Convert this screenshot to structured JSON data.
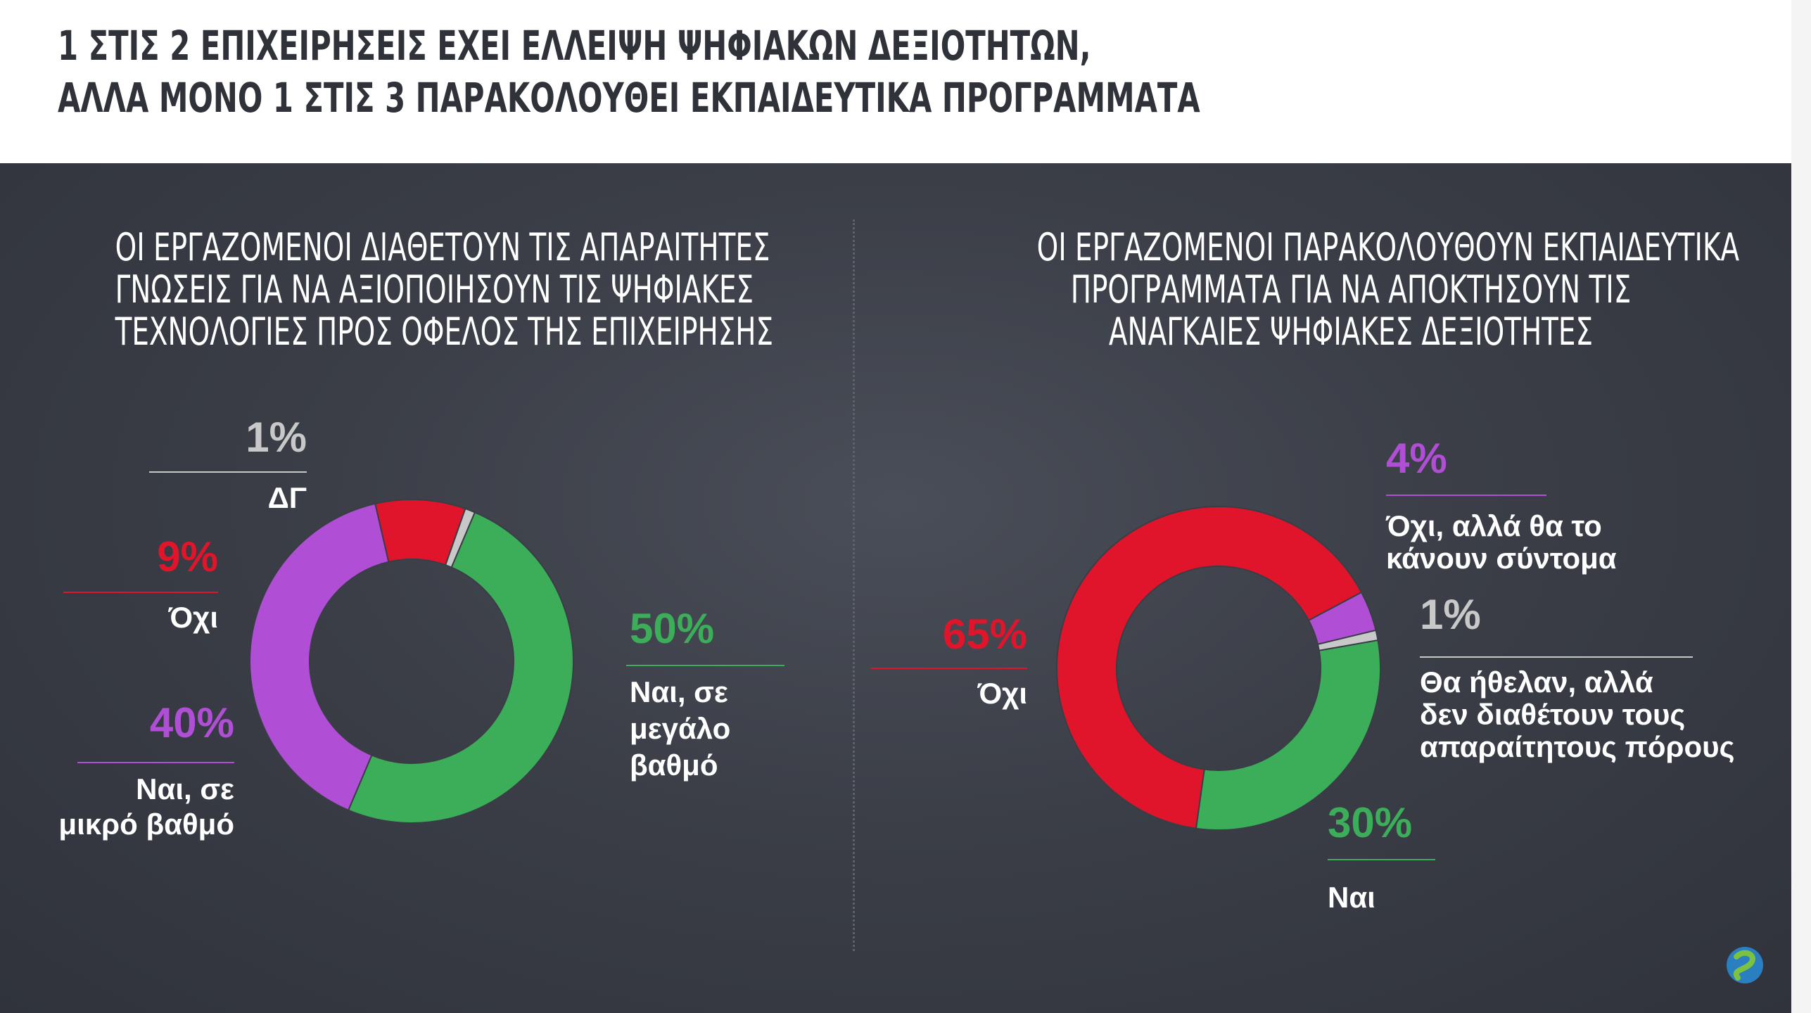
{
  "title": {
    "line1": "1 ΣΤΙΣ 2 ΕΠΙΧΕΙΡΗΣΕΙΣ ΕΧΕΙ ΕΛΛΕΙΨΗ ΨΗΦΙΑΚΩΝ ΔΕΞΙΟΤΗΤΩΝ,",
    "line2": "ΑΛΛΑ ΜΟΝΟ 1 ΣΤΙΣ 3 ΠΑΡΑΚΟΛΟΥΘΕΙ ΕΚΠΑΙΔΕΥΤΙΚΑ ΠΡΟΓΡΑΜΜΑΤΑ"
  },
  "colors": {
    "green": "#3cae5a",
    "purple": "#b14ed6",
    "red": "#e0142a",
    "gray": "#c8c8c8"
  },
  "chart_data": [
    {
      "type": "pie",
      "title_lines": [
        "ΟΙ ΕΡΓΑΖΟΜΕΝΟΙ ΔΙΑΘΕΤΟΥΝ ΤΙΣ ΑΠΑΡΑΙΤΗΤΕΣ",
        "ΓΝΩΣΕΙΣ ΓΙΑ ΝΑ ΑΞΙΟΠΟΙΗΣΟΥΝ ΤΙΣ ΨΗΦΙΑΚΕΣ",
        "ΤΕΧΝΟΛΟΓΙΕΣ ΠΡΟΣ ΟΦΕΛΟΣ ΤΗΣ ΕΠΙΧΕΙΡΗΣΗΣ"
      ],
      "slices": [
        {
          "label_lines": [
            "Ναι, σε",
            "μεγάλο",
            "βαθμό"
          ],
          "value": 50,
          "pct_label": "50%",
          "color": "#3cae5a"
        },
        {
          "label_lines": [
            "Ναι, σε",
            "μικρό βαθμό"
          ],
          "value": 40,
          "pct_label": "40%",
          "color": "#b14ed6"
        },
        {
          "label_lines": [
            "Όχι"
          ],
          "value": 9,
          "pct_label": "9%",
          "color": "#e0142a"
        },
        {
          "label_lines": [
            "ΔΓ"
          ],
          "value": 1,
          "pct_label": "1%",
          "color": "#c8c8c8"
        }
      ]
    },
    {
      "type": "pie",
      "title_lines": [
        "ΟΙ ΕΡΓΑΖΟΜΕΝΟΙ ΠΑΡΑΚΟΛΟΥΘΟΥΝ ΕΚΠΑΙΔΕΥΤΙΚΑ",
        "ΠΡΟΓΡΑΜΜΑΤΑ ΓΙΑ ΝΑ ΑΠΟΚΤΗΣΟΥΝ ΤΙΣ",
        "ΑΝΑΓΚΑΙΕΣ ΨΗΦΙΑΚΕΣ ΔΕΞΙΟΤΗΤΕΣ"
      ],
      "slices": [
        {
          "label_lines": [
            "Όχι"
          ],
          "value": 65,
          "pct_label": "65%",
          "color": "#e0142a"
        },
        {
          "label_lines": [
            "Όχι, αλλά θα το",
            "κάνουν σύντομα"
          ],
          "value": 4,
          "pct_label": "4%",
          "color": "#b14ed6"
        },
        {
          "label_lines": [
            "Θα ήθελαν, αλλά",
            "δεν διαθέτουν τους",
            "απαραίτητους πόρους"
          ],
          "value": 1,
          "pct_label": "1%",
          "color": "#c8c8c8"
        },
        {
          "label_lines": [
            "Ναι"
          ],
          "value": 30,
          "pct_label": "30%",
          "color": "#3cae5a"
        }
      ]
    }
  ]
}
